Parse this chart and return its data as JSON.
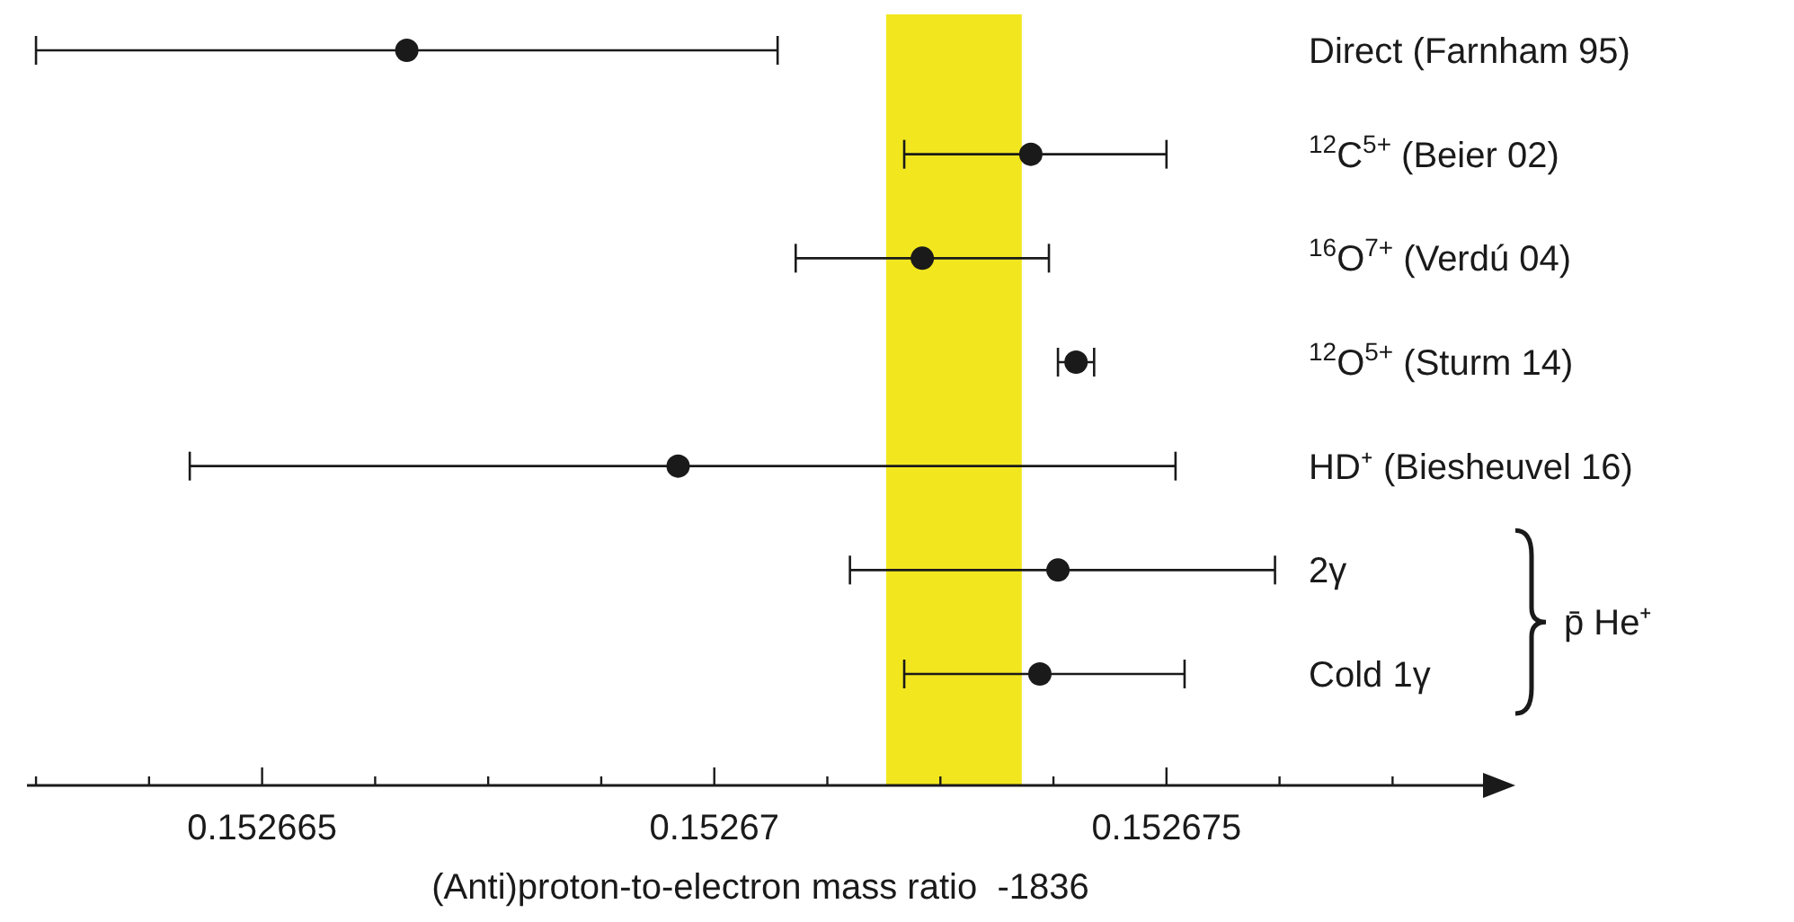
{
  "chart_data": {
    "type": "scatter",
    "orientation": "horizontal",
    "xlabel": "(Anti)proton-to-electron mass ratio  -1836",
    "categories": [
      "Direct (Farnham 95)",
      "$^{12}$C$^{5+}$ (Beier 02)",
      "$^{16}$O$^{7+}$ (Verdú 04)",
      "$^{12}$O$^{5+}$ (Sturm 14)",
      "HD⁺ (Biesheuvel 16)",
      "2γ",
      "Cold 1γ"
    ],
    "values": [
      0.1526666,
      0.1526735,
      0.1526723,
      0.152674,
      0.1526696,
      0.1526738,
      0.1526736
    ],
    "errors": [
      [
        0.1526625,
        0.1526707
      ],
      [
        0.1526721,
        0.152675
      ],
      [
        0.1526709,
        0.1526737
      ],
      [
        0.1526738,
        0.1526742
      ],
      [
        0.1526642,
        0.1526751
      ],
      [
        0.1526715,
        0.1526762
      ],
      [
        0.1526721,
        0.1526752
      ]
    ],
    "color": "#1a1a1a",
    "marker": "circle",
    "xlim": [
      0.1526624,
      0.1526785
    ],
    "xticks": [
      {
        "value": 0.1526625,
        "label": null
      },
      {
        "value": 0.15266375,
        "label": null
      },
      {
        "value": 0.152665,
        "label": "0.152665"
      },
      {
        "value": 0.15266625,
        "label": null
      },
      {
        "value": 0.1526675,
        "label": null
      },
      {
        "value": 0.15266875,
        "label": null
      },
      {
        "value": 0.15267,
        "label": "0.15267"
      },
      {
        "value": 0.15267125,
        "label": null
      },
      {
        "value": 0.1526725,
        "label": null
      },
      {
        "value": 0.15267375,
        "label": null
      },
      {
        "value": 0.152675,
        "label": "0.152675"
      },
      {
        "value": 0.15267625,
        "label": null
      },
      {
        "value": 0.1526775,
        "label": null
      }
    ],
    "bands": [
      {
        "axis": "x",
        "from": 0.1526719,
        "to": 0.1526734,
        "color": "#f2e71f"
      }
    ],
    "annotations": [
      "p̄ He⁺"
    ]
  }
}
